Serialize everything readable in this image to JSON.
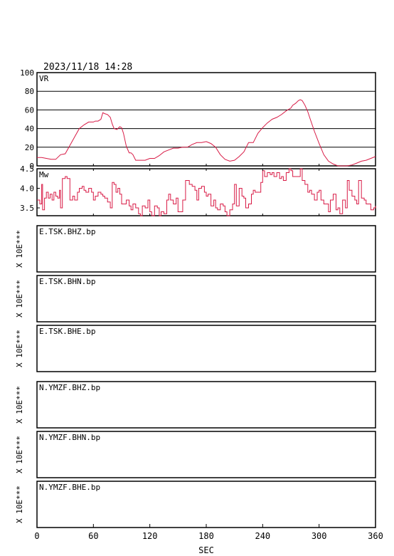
{
  "header": {
    "datetime": "2023/11/18 14:28"
  },
  "chart_data": [
    {
      "type": "line",
      "label": "VR",
      "ylim": [
        0,
        100
      ],
      "yticks": [
        "100",
        "80",
        "60",
        "40",
        "20",
        "0"
      ],
      "yticks_values": [
        100,
        80,
        60,
        40,
        20,
        0
      ],
      "grid": true,
      "color": "#d81b46",
      "x": [
        0,
        5,
        10,
        15,
        20,
        25,
        30,
        35,
        40,
        45,
        50,
        55,
        60,
        62,
        65,
        68,
        70,
        72,
        75,
        78,
        80,
        82,
        85,
        88,
        90,
        92,
        95,
        98,
        100,
        102,
        105,
        110,
        115,
        120,
        125,
        130,
        135,
        140,
        145,
        150,
        155,
        160,
        165,
        170,
        175,
        180,
        185,
        190,
        195,
        200,
        205,
        210,
        215,
        220,
        225,
        230,
        235,
        240,
        245,
        250,
        255,
        260,
        265,
        270,
        272,
        275,
        278,
        280,
        282,
        285,
        288,
        290,
        295,
        300,
        305,
        310,
        315,
        320,
        325,
        330,
        335,
        340,
        345,
        350,
        355,
        360
      ],
      "values": [
        9,
        9,
        8,
        7,
        7,
        12,
        13,
        22,
        31,
        40,
        44,
        47,
        47,
        48,
        48,
        50,
        57,
        56,
        55,
        52,
        45,
        40,
        39,
        42,
        41,
        35,
        21,
        14,
        14,
        12,
        6,
        6,
        6,
        8,
        8,
        11,
        15,
        17,
        19,
        19,
        20,
        20,
        23,
        25,
        25,
        26,
        24,
        20,
        12,
        7,
        5,
        6,
        10,
        15,
        25,
        25,
        35,
        41,
        46,
        50,
        52,
        55,
        59,
        62,
        65,
        67,
        70,
        71,
        70,
        65,
        58,
        52,
        37,
        24,
        12,
        5,
        2,
        0,
        0,
        0,
        1,
        3,
        5,
        6,
        8,
        10
      ]
    },
    {
      "type": "line",
      "label": "Mw",
      "ylim": [
        3.3,
        4.5
      ],
      "yticks": [
        "4.5",
        "4.0",
        "3.5"
      ],
      "yticks_values": [
        4.5,
        4.0,
        3.5
      ],
      "grid": false,
      "color": "#d81b46",
      "x": [
        0,
        3,
        5,
        6,
        8,
        10,
        12,
        14,
        16,
        18,
        20,
        22,
        24,
        25,
        27,
        30,
        32,
        35,
        38,
        40,
        43,
        45,
        48,
        50,
        52,
        55,
        58,
        60,
        62,
        65,
        68,
        70,
        72,
        75,
        78,
        80,
        82,
        84,
        86,
        88,
        90,
        95,
        98,
        100,
        102,
        105,
        108,
        110,
        112,
        115,
        118,
        120,
        122,
        125,
        128,
        130,
        132,
        135,
        138,
        140,
        142,
        145,
        148,
        150,
        155,
        158,
        160,
        162,
        165,
        168,
        170,
        172,
        175,
        178,
        180,
        182,
        185,
        188,
        190,
        192,
        195,
        198,
        200,
        202,
        205,
        208,
        210,
        212,
        215,
        218,
        220,
        222,
        225,
        228,
        230,
        232,
        235,
        238,
        240,
        242,
        245,
        248,
        250,
        252,
        255,
        258,
        260,
        262,
        265,
        268,
        270,
        272,
        275,
        278,
        280,
        282,
        285,
        288,
        290,
        292,
        295,
        298,
        300,
        302,
        305,
        308,
        310,
        312,
        315,
        318,
        320,
        322,
        325,
        328,
        330,
        332,
        335,
        338,
        340,
        342,
        345,
        348,
        350,
        352,
        355,
        358,
        360
      ],
      "values": [
        3.7,
        3.6,
        4.1,
        3.45,
        3.75,
        3.9,
        3.75,
        3.85,
        3.7,
        3.9,
        3.8,
        3.75,
        3.95,
        3.5,
        4.25,
        4.3,
        4.25,
        3.7,
        3.8,
        3.7,
        3.9,
        4.0,
        4.05,
        3.95,
        3.9,
        4.0,
        3.9,
        3.7,
        3.8,
        3.9,
        3.85,
        3.8,
        3.75,
        3.65,
        3.5,
        4.15,
        4.1,
        3.9,
        4.0,
        3.85,
        3.6,
        3.7,
        3.55,
        3.45,
        3.6,
        3.5,
        3.35,
        3.3,
        3.55,
        3.5,
        3.7,
        3.4,
        3.3,
        3.55,
        3.5,
        3.3,
        3.4,
        3.35,
        3.7,
        3.85,
        3.7,
        3.6,
        3.75,
        3.4,
        3.7,
        4.2,
        4.2,
        4.1,
        4.05,
        3.95,
        3.7,
        4.0,
        4.05,
        3.9,
        3.8,
        3.85,
        3.55,
        3.7,
        3.5,
        3.45,
        3.6,
        3.55,
        3.4,
        3.3,
        3.45,
        3.6,
        4.1,
        3.55,
        4.0,
        3.8,
        3.75,
        3.5,
        3.6,
        3.85,
        3.95,
        3.9,
        3.9,
        4.15,
        4.45,
        4.3,
        4.4,
        4.35,
        4.4,
        4.3,
        4.4,
        4.25,
        4.3,
        4.2,
        4.4,
        4.5,
        4.45,
        4.3,
        4.3,
        4.3,
        4.5,
        4.2,
        4.1,
        3.9,
        3.95,
        3.85,
        3.7,
        3.9,
        3.95,
        3.7,
        3.6,
        3.6,
        3.4,
        3.7,
        3.85,
        3.45,
        3.5,
        3.35,
        3.7,
        3.5,
        4.2,
        3.95,
        3.8,
        3.7,
        3.6,
        4.2,
        3.75,
        3.7,
        3.6,
        3.6,
        3.45,
        3.5,
        3.55
      ]
    },
    {
      "type": "line",
      "x_axis": {
        "label": "SEC",
        "xlim": [
          0,
          360
        ],
        "ticks": [
          "0",
          "60",
          "120",
          "180",
          "240",
          "300",
          "360"
        ],
        "tick_values": [
          0,
          60,
          120,
          180,
          240,
          300,
          360
        ]
      },
      "scale_label": "X 10E***",
      "traces": [
        {
          "group": 1,
          "name": "E.TSK.BHZ.bp"
        },
        {
          "group": 1,
          "name": "E.TSK.BHN.bp"
        },
        {
          "group": 1,
          "name": "E.TSK.BHE.bp"
        },
        {
          "group": 2,
          "name": "N.YMZF.BHZ.bp"
        },
        {
          "group": 2,
          "name": "N.YMZF.BHN.bp"
        },
        {
          "group": 2,
          "name": "N.YMZF.BHE.bp"
        }
      ]
    }
  ]
}
